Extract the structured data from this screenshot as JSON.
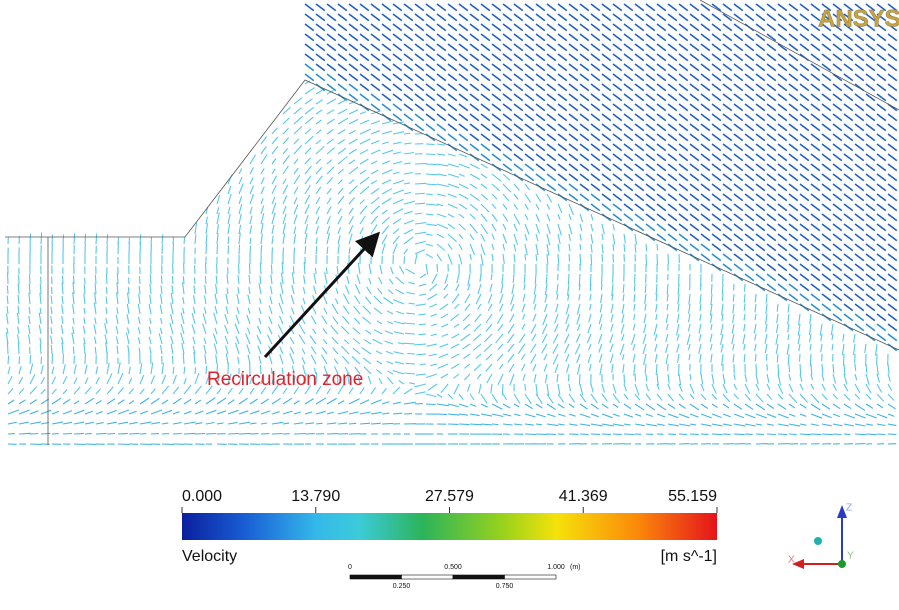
{
  "logo": "ANSYS",
  "annotation": "Recirculation zone",
  "legend": {
    "title": "Velocity",
    "unit": "[m s^-1]",
    "ticks": [
      {
        "value": 0,
        "label": "0.000"
      },
      {
        "value": 13.79,
        "label": "13.790"
      },
      {
        "value": 27.579,
        "label": "27.579"
      },
      {
        "value": 41.369,
        "label": "41.369"
      },
      {
        "value": 55.159,
        "label": "55.159"
      }
    ]
  },
  "scale_bar": {
    "unit": "(m)",
    "top_labels": [
      0,
      {
        "value": 0.5,
        "label": "0.500"
      },
      {
        "value": 1,
        "label": "1.000"
      }
    ],
    "bottom_labels": [
      {
        "value": 0.25,
        "label": "0.250"
      },
      {
        "value": 0.75,
        "label": "0.750"
      }
    ]
  },
  "axes": {
    "z": "Z",
    "x": "X",
    "y": "Y"
  }
}
